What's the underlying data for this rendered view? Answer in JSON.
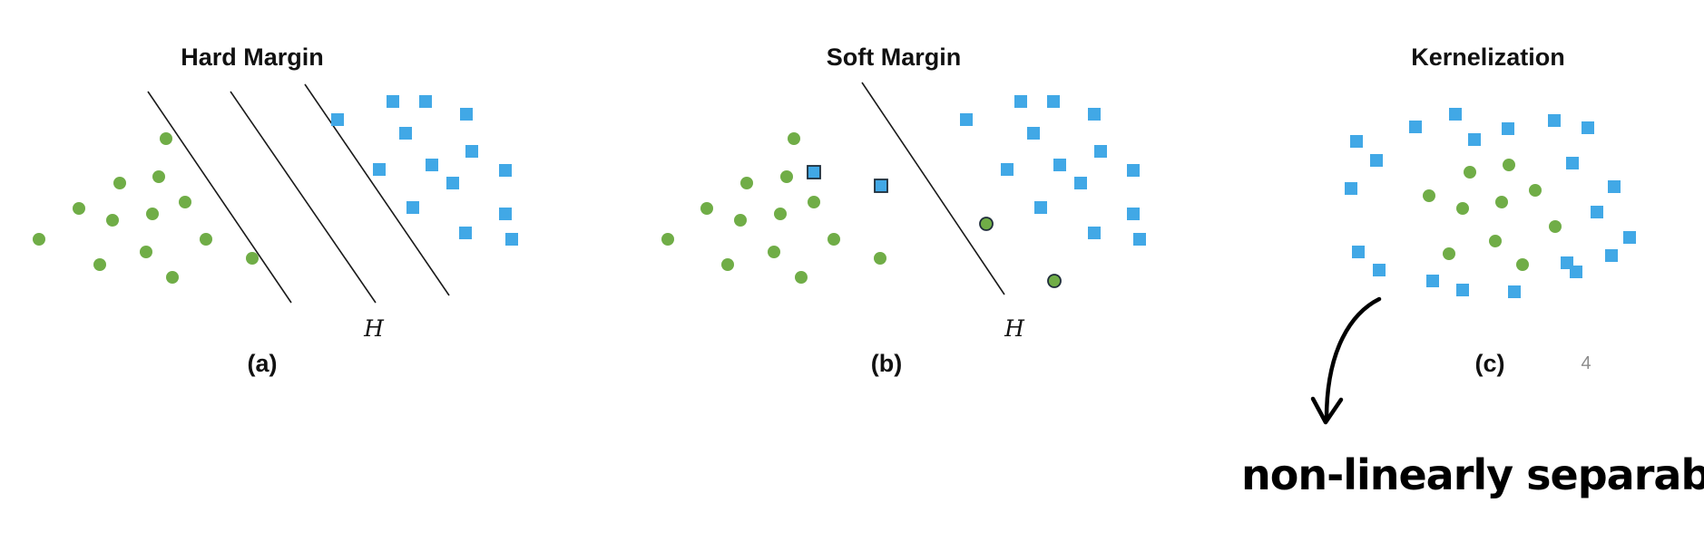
{
  "colors": {
    "circle": "#70ad47",
    "square": "#41a8e6",
    "line": "#1a1a1a",
    "outline": "#1f2d3a"
  },
  "panels": [
    {
      "id": "a",
      "title": "Hard Margin",
      "caption": "(a)",
      "h_label": "H"
    },
    {
      "id": "b",
      "title": "Soft Margin",
      "caption": "(b)",
      "h_label": "H"
    },
    {
      "id": "c",
      "title": "Kernelization",
      "caption": "(c)",
      "h_label": ""
    }
  ],
  "page_number": "4",
  "handwritten_note": "non-linearly separable data"
}
